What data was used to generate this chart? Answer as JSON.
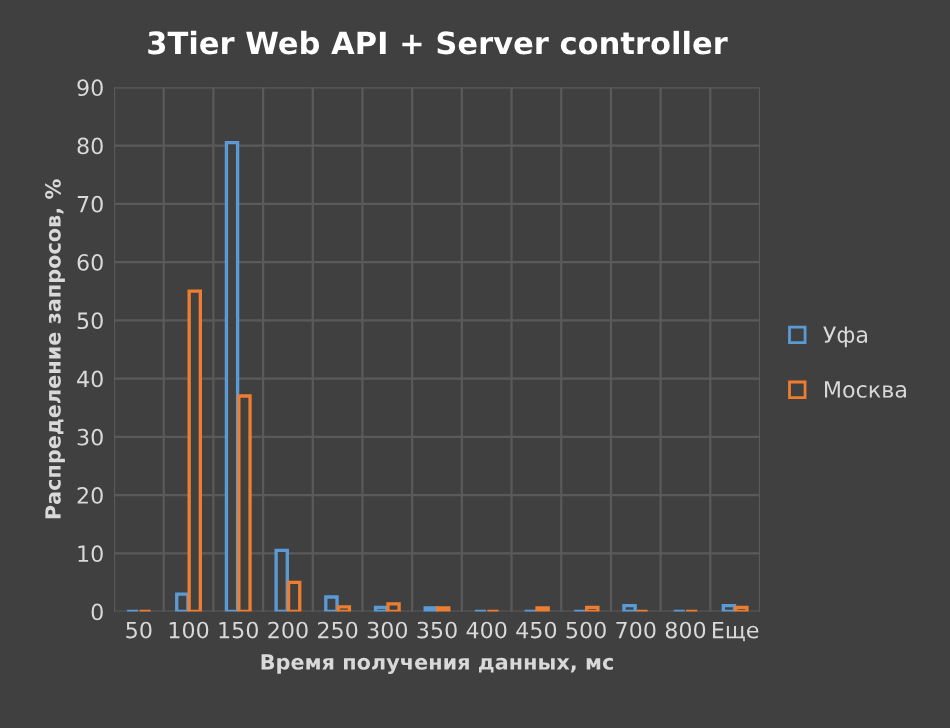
{
  "chart_data": {
    "type": "bar",
    "title": "3Tier Web API + Server controller",
    "xlabel": "Время получения данных, мс",
    "ylabel": "Распределение запросов, %",
    "categories": [
      "50",
      "100",
      "150",
      "200",
      "250",
      "300",
      "350",
      "400",
      "450",
      "500",
      "700",
      "800",
      "Еще"
    ],
    "series": [
      {
        "name": "Уфа",
        "color": "#5b9bd5",
        "values": [
          0,
          3,
          80.5,
          10.5,
          2.5,
          0.7,
          0.6,
          0,
          0,
          0,
          1,
          0,
          1
        ]
      },
      {
        "name": "Москва",
        "color": "#ed7d31",
        "values": [
          0,
          55,
          37,
          5,
          0.8,
          1.3,
          0.6,
          0,
          0.6,
          0.7,
          0,
          0,
          0.7
        ]
      }
    ],
    "ylim": [
      0,
      90
    ],
    "yticks": [
      0,
      10,
      20,
      30,
      40,
      50,
      60,
      70,
      80,
      90
    ],
    "grid": true,
    "legend": "right"
  }
}
